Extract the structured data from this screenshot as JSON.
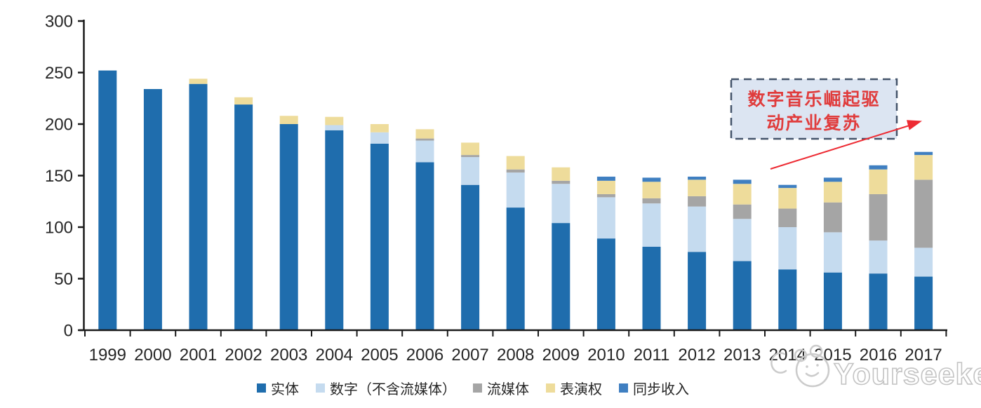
{
  "chart_data": {
    "type": "bar",
    "stacked": true,
    "title": "",
    "categories": [
      "1999",
      "2000",
      "2001",
      "2002",
      "2003",
      "2004",
      "2005",
      "2006",
      "2007",
      "2008",
      "2009",
      "2010",
      "2011",
      "2012",
      "2013",
      "2014",
      "2015",
      "2016",
      "2017"
    ],
    "series": [
      {
        "name": "实体",
        "color": "#1F6DAD",
        "values": [
          252,
          234,
          239,
          219,
          200,
          194,
          181,
          163,
          141,
          119,
          104,
          89,
          81,
          76,
          67,
          59,
          56,
          55,
          52
        ]
      },
      {
        "name": "数字（不含流媒体）",
        "color": "#C5DBEF",
        "values": [
          0,
          0,
          0,
          0,
          0,
          5,
          11,
          21,
          27,
          34,
          38,
          40,
          42,
          44,
          41,
          41,
          39,
          32,
          28
        ]
      },
      {
        "name": "流媒体",
        "color": "#A5A5A5",
        "values": [
          0,
          0,
          0,
          0,
          0,
          0,
          0,
          2,
          2,
          3,
          3,
          3,
          5,
          10,
          14,
          18,
          29,
          45,
          66
        ]
      },
      {
        "name": "表演权",
        "color": "#EEDC9B",
        "values": [
          0,
          0,
          5,
          7,
          8,
          8,
          8,
          9,
          12,
          13,
          13,
          13,
          16,
          16,
          20,
          20,
          20,
          24,
          24
        ]
      },
      {
        "name": "同步收入",
        "color": "#3F7FC1",
        "values": [
          0,
          0,
          0,
          0,
          0,
          0,
          0,
          0,
          0,
          0,
          0,
          4,
          4,
          3,
          4,
          3,
          4,
          4,
          3
        ]
      }
    ],
    "ylim": [
      0,
      300
    ],
    "yticks": [
      0,
      50,
      100,
      150,
      200,
      250,
      300
    ],
    "grid": false,
    "legend_position": "bottom",
    "axis_color": "#1a1a1a"
  },
  "annotation": {
    "line1": "数字音乐崛起驱",
    "line2": "动产业复苏",
    "text_color": "#E03C3C",
    "box_fill": "#DCE5F2",
    "box_border": "#44546A",
    "arrow_color": "#ED2B33"
  },
  "watermark": {
    "text": "Yourseeker",
    "logo": "cat-doodle-logo",
    "color": "#C6C6C6"
  }
}
